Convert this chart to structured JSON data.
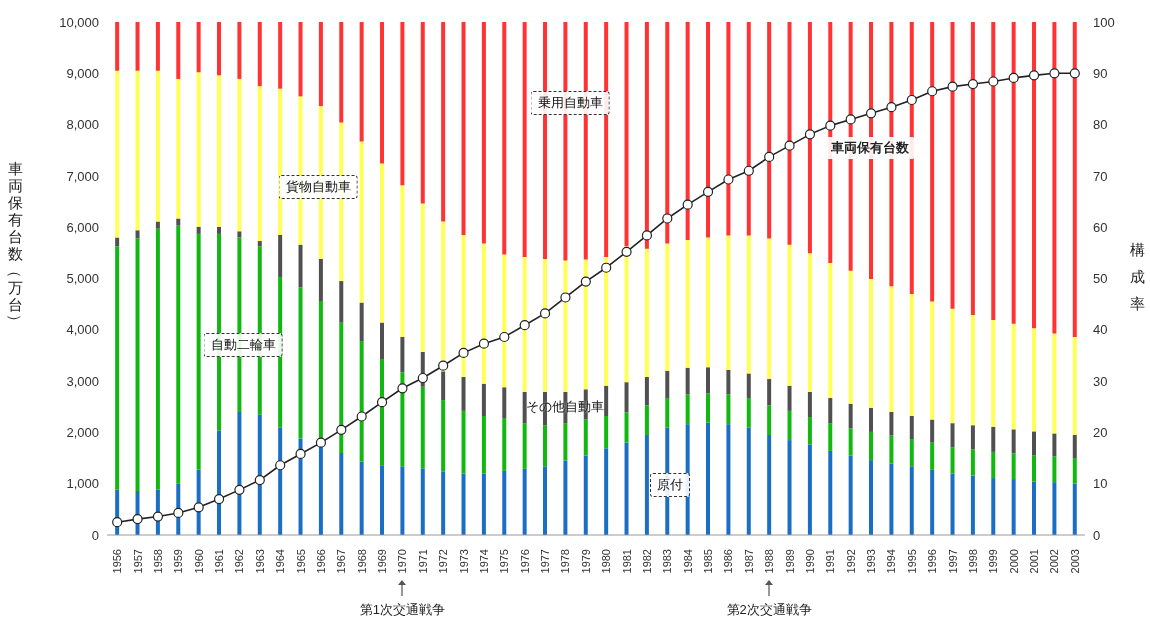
{
  "chart_data": {
    "type": "bar",
    "stacked": true,
    "categories": [
      "1956",
      "1957",
      "1958",
      "1959",
      "1960",
      "1961",
      "1962",
      "1963",
      "1964",
      "1965",
      "1966",
      "1967",
      "1968",
      "1969",
      "1970",
      "1971",
      "1972",
      "1973",
      "1974",
      "1975",
      "1976",
      "1977",
      "1978",
      "1979",
      "1980",
      "1981",
      "1982",
      "1983",
      "1984",
      "1985",
      "1986",
      "1987",
      "1988",
      "1989",
      "1990",
      "1991",
      "1992",
      "1993",
      "1994",
      "1995",
      "1996",
      "1997",
      "1998",
      "1999",
      "2000",
      "2001",
      "2002",
      "2003"
    ],
    "ylabel": "車両保有台数（万台）",
    "y2label": "構成率",
    "ylim": [
      0,
      10000
    ],
    "yticks": [
      0,
      {
        "value": 1000,
        "label": "1,000"
      },
      {
        "value": 2000,
        "label": "2,000"
      },
      {
        "value": 3000,
        "label": "3,000"
      },
      {
        "value": 4000,
        "label": "4,000"
      },
      {
        "value": 5000,
        "label": "5,000"
      },
      {
        "value": 6000,
        "label": "6,000"
      },
      {
        "value": 7000,
        "label": "7,000"
      },
      {
        "value": 8000,
        "label": "8,000"
      },
      {
        "value": 9000,
        "label": "9,000"
      },
      {
        "value": 10000,
        "label": "10,000"
      }
    ],
    "y2lim": [
      0,
      100
    ],
    "y2ticks": [
      0,
      10,
      20,
      30,
      40,
      50,
      60,
      70,
      80,
      90,
      100
    ],
    "annotations": [
      "第1次交通戦争",
      "第2次交通戦争"
    ],
    "series": [
      {
        "name": "原付",
        "color": "#1a6fc4",
        "axis": "y2",
        "values": [
          8.8,
          8.6,
          8.8,
          10.0,
          12.7,
          20.4,
          24.0,
          23.5,
          20.9,
          18.8,
          17.4,
          16.0,
          14.3,
          13.6,
          13.4,
          13.0,
          12.4,
          12.0,
          12.0,
          12.5,
          12.9,
          13.4,
          14.5,
          15.5,
          16.9,
          18.0,
          19.5,
          20.9,
          21.6,
          21.9,
          21.6,
          20.9,
          19.5,
          18.5,
          17.6,
          16.4,
          15.5,
          14.6,
          13.9,
          13.4,
          12.7,
          12.0,
          11.6,
          11.1,
          10.9,
          10.4,
          10.3,
          10.0
        ]
      },
      {
        "name": "自動二輪車",
        "color": "#11b811",
        "axis": "y2",
        "values": [
          47.5,
          49.2,
          50.9,
          50.3,
          46.0,
          38.3,
          34.0,
          32.8,
          29.4,
          29.5,
          28.2,
          25.4,
          23.5,
          20.7,
          18.3,
          15.9,
          13.9,
          12.2,
          11.2,
          10.3,
          8.9,
          8.0,
          7.3,
          7.0,
          6.3,
          5.9,
          5.8,
          5.8,
          5.8,
          5.7,
          5.8,
          5.8,
          5.8,
          5.7,
          5.4,
          5.4,
          5.3,
          5.5,
          5.5,
          5.3,
          5.3,
          5.1,
          5.1,
          5.1,
          5.0,
          5.1,
          5.0,
          5.0
        ]
      },
      {
        "name": "その他自動車",
        "color": "#505050",
        "axis": "y2",
        "values": [
          1.7,
          1.6,
          1.4,
          1.4,
          1.4,
          1.4,
          1.2,
          1.0,
          8.2,
          8.3,
          8.2,
          8.1,
          7.5,
          7.1,
          6.9,
          6.8,
          5.6,
          6.6,
          6.3,
          6.0,
          6.1,
          6.5,
          6.1,
          5.9,
          5.9,
          5.9,
          5.5,
          5.3,
          5.2,
          5.1,
          4.8,
          4.8,
          5.1,
          4.9,
          4.9,
          4.9,
          4.8,
          4.7,
          4.6,
          4.5,
          4.5,
          4.7,
          4.7,
          4.9,
          4.7,
          4.7,
          4.5,
          4.5
        ]
      },
      {
        "name": "貨物自動車",
        "color": "#ffff55",
        "axis": "y2",
        "values": [
          32.5,
          31.1,
          29.4,
          27.2,
          30.1,
          29.5,
          29.7,
          30.2,
          28.5,
          28.9,
          29.8,
          30.9,
          31.4,
          31.0,
          29.6,
          28.9,
          29.2,
          27.7,
          27.3,
          25.9,
          26.3,
          25.9,
          25.6,
          25.3,
          25.1,
          26.5,
          25.0,
          24.8,
          24.9,
          25.3,
          26.2,
          26.9,
          27.4,
          27.5,
          27.0,
          26.3,
          25.9,
          25.1,
          24.5,
          23.8,
          23.0,
          22.3,
          21.5,
          20.8,
          20.6,
          20.1,
          19.5,
          19.1
        ]
      },
      {
        "name": "乗用自動車",
        "color": "#ff3333",
        "axis": "y2",
        "values": [
          9.5,
          9.5,
          9.5,
          11.1,
          9.8,
          10.4,
          11.1,
          12.5,
          13.0,
          14.5,
          16.4,
          19.6,
          23.3,
          27.6,
          31.8,
          35.4,
          38.9,
          41.5,
          43.2,
          45.3,
          45.8,
          46.2,
          46.5,
          46.3,
          45.8,
          43.7,
          44.2,
          43.2,
          42.5,
          42.0,
          41.6,
          41.6,
          42.2,
          43.4,
          45.1,
          47.0,
          48.5,
          50.1,
          51.5,
          53.0,
          54.5,
          55.9,
          57.1,
          58.1,
          58.8,
          59.7,
          60.7,
          61.4
        ]
      },
      {
        "name": "車両保有台数",
        "type": "line",
        "color": "#222222",
        "axis": "y",
        "marker": "circle",
        "values": [
          250,
          310,
          360,
          430,
          540,
          700,
          880,
          1070,
          1360,
          1580,
          1800,
          2050,
          2310,
          2590,
          2860,
          3060,
          3300,
          3550,
          3730,
          3860,
          4090,
          4320,
          4630,
          4940,
          5210,
          5520,
          5840,
          6170,
          6440,
          6690,
          6930,
          7100,
          7370,
          7590,
          7810,
          7980,
          8100,
          8220,
          8340,
          8480,
          8650,
          8740,
          8790,
          8840,
          8910,
          8960,
          9000,
          9000
        ]
      }
    ]
  }
}
